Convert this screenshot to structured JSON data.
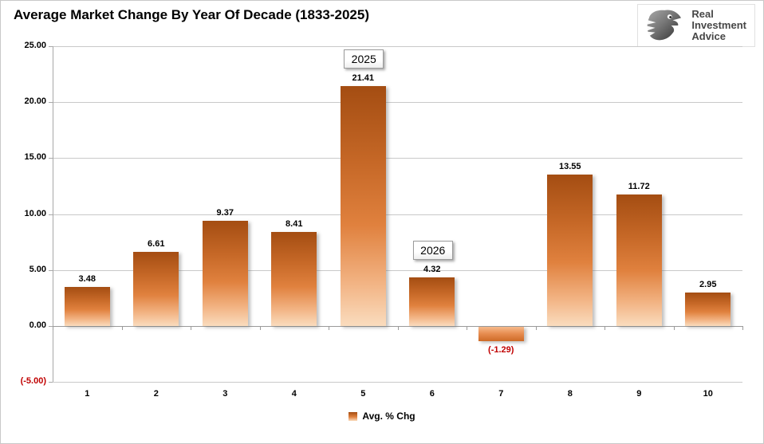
{
  "title": "Average Market Change By Year Of Decade (1833-2025)",
  "logo": {
    "line1": "Real",
    "line2": "Investment",
    "line3": "Advice"
  },
  "legend": {
    "label": "Avg. % Chg"
  },
  "colors": {
    "bar_gradient_top": "#A44D12",
    "bar_gradient_mid": "#E0813E",
    "bar_gradient_bottom": "#FADCBE",
    "negative_text": "#C00000",
    "gridline": "#C9C9C9",
    "axis": "#9A9A9A"
  },
  "chart_data": {
    "type": "bar",
    "title": "Average Market Change By Year Of Decade (1833-2025)",
    "xlabel": "",
    "ylabel": "",
    "categories": [
      "1",
      "2",
      "3",
      "4",
      "5",
      "6",
      "7",
      "8",
      "9",
      "10"
    ],
    "series": [
      {
        "name": "Avg. % Chg",
        "values": [
          3.48,
          6.61,
          9.37,
          8.41,
          21.41,
          4.32,
          -1.29,
          13.55,
          11.72,
          2.95
        ]
      }
    ],
    "value_labels": [
      "3.48",
      "6.61",
      "9.37",
      "8.41",
      "21.41",
      "4.32",
      "(-1.29)",
      "13.55",
      "11.72",
      "2.95"
    ],
    "ylim": [
      -5,
      25
    ],
    "yticks": [
      25,
      20,
      15,
      10,
      5,
      0,
      -5
    ],
    "ytick_labels": [
      "25.00",
      "20.00",
      "15.00",
      "10.00",
      "5.00",
      "0.00",
      "(-5.00)"
    ],
    "annotations": [
      {
        "text": "2025",
        "category_index": 4
      },
      {
        "text": "2026",
        "category_index": 5
      }
    ],
    "grid": true,
    "legend_position": "bottom"
  }
}
